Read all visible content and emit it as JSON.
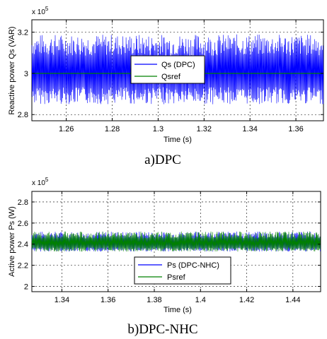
{
  "charts": [
    {
      "caption": "a)DPC",
      "exponent_label": "x 10",
      "exponent_power": "5",
      "chart_data": {
        "type": "line",
        "title": "",
        "xlabel": "Time (s)",
        "ylabel": "Reactive power Qs (VAR)",
        "xlim": [
          1.245,
          1.372
        ],
        "ylim": [
          2.77,
          3.26
        ],
        "xticks": [
          1.26,
          1.28,
          1.3,
          1.32,
          1.34,
          1.36
        ],
        "xtick_labels": [
          "1.26",
          "1.28",
          "1.3",
          "1.32",
          "1.34",
          "1.36"
        ],
        "yticks": [
          2.8,
          3.0,
          3.2
        ],
        "ytick_labels": [
          "2.8",
          "3",
          "3.2"
        ],
        "grid": true,
        "legend_position": "center",
        "series": [
          {
            "name": "Qs (DPC)",
            "color": "#0000ff",
            "kind": "oscillating",
            "mean": 3.0,
            "lower": 2.85,
            "upper": 3.19
          },
          {
            "name": "Qsref",
            "color": "#008000",
            "kind": "constant",
            "value": 3.0
          }
        ]
      }
    },
    {
      "caption": "b)DPC-NHC",
      "exponent_label": "x 10",
      "exponent_power": "5",
      "chart_data": {
        "type": "line",
        "title": "",
        "xlabel": "Time (s)",
        "ylabel": "Active power Ps (W)",
        "xlim": [
          1.327,
          1.452
        ],
        "ylim": [
          1.95,
          2.9
        ],
        "xticks": [
          1.34,
          1.36,
          1.38,
          1.4,
          1.42,
          1.44
        ],
        "xtick_labels": [
          "1.34",
          "1.36",
          "1.38",
          "1.4",
          "1.42",
          "1.44"
        ],
        "yticks": [
          2.0,
          2.2,
          2.4,
          2.6,
          2.8
        ],
        "ytick_labels": [
          "2",
          "2.2",
          "2.4",
          "2.6",
          "2.8"
        ],
        "grid": true,
        "legend_position": "bottom-center",
        "series": [
          {
            "name": "Ps (DPC-NHC)",
            "color": "#0000ff",
            "kind": "oscillating",
            "mean": 2.4,
            "lower": 2.33,
            "upper": 2.52
          },
          {
            "name": "Psref",
            "color": "#008000",
            "kind": "oscillating",
            "mean": 2.4,
            "lower": 2.33,
            "upper": 2.52
          }
        ]
      }
    }
  ]
}
